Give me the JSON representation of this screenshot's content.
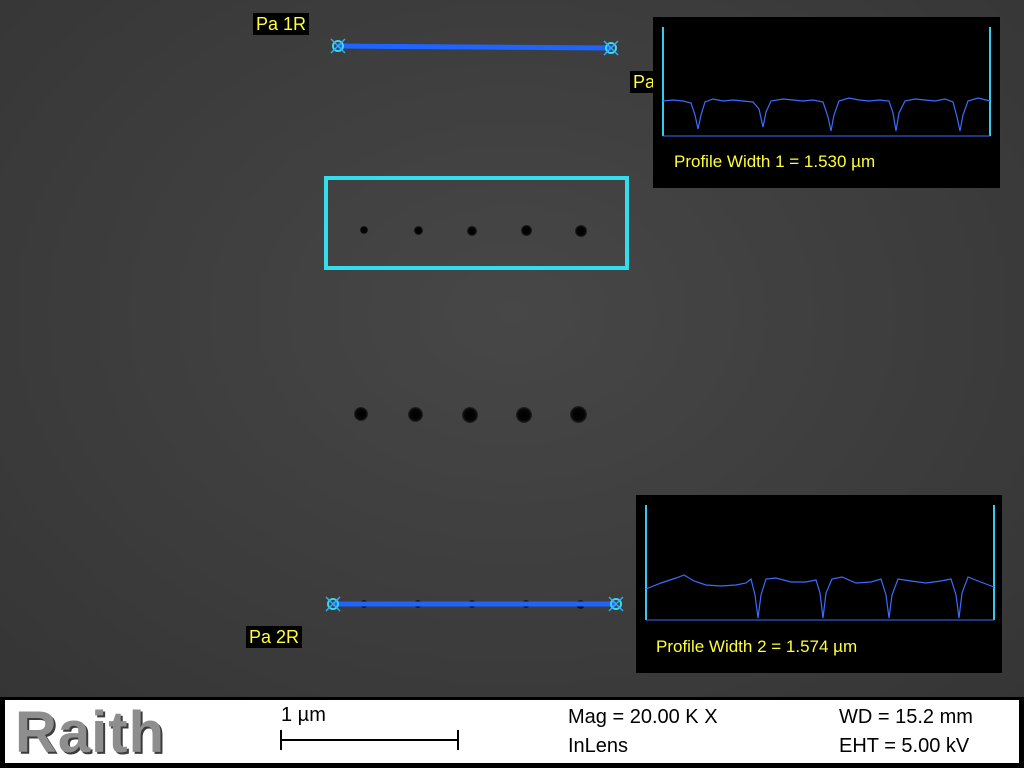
{
  "markers": {
    "pa1r": "Pa 1R",
    "pa2r": "Pa 2R",
    "pa_partial": "Pa"
  },
  "profile1": {
    "text": "Profile Width 1 = 1.530 µm",
    "line_color": "#3a6cff",
    "bracket_color": "#33ccee"
  },
  "profile2": {
    "text": "Profile Width 2 = 1.574 µm",
    "line_color": "#3a6cff",
    "bracket_color": "#33ccee"
  },
  "colors": {
    "measure_line": "#1e64ff",
    "roi_box": "#33ddee",
    "label_text": "#ffff33"
  },
  "databar": {
    "logo": "Raith",
    "scale_label": "1 µm",
    "mag": "Mag =  20.00 K X",
    "detector": "InLens",
    "wd": "WD = 15.2 mm",
    "eht": "EHT =  5.00 kV"
  }
}
